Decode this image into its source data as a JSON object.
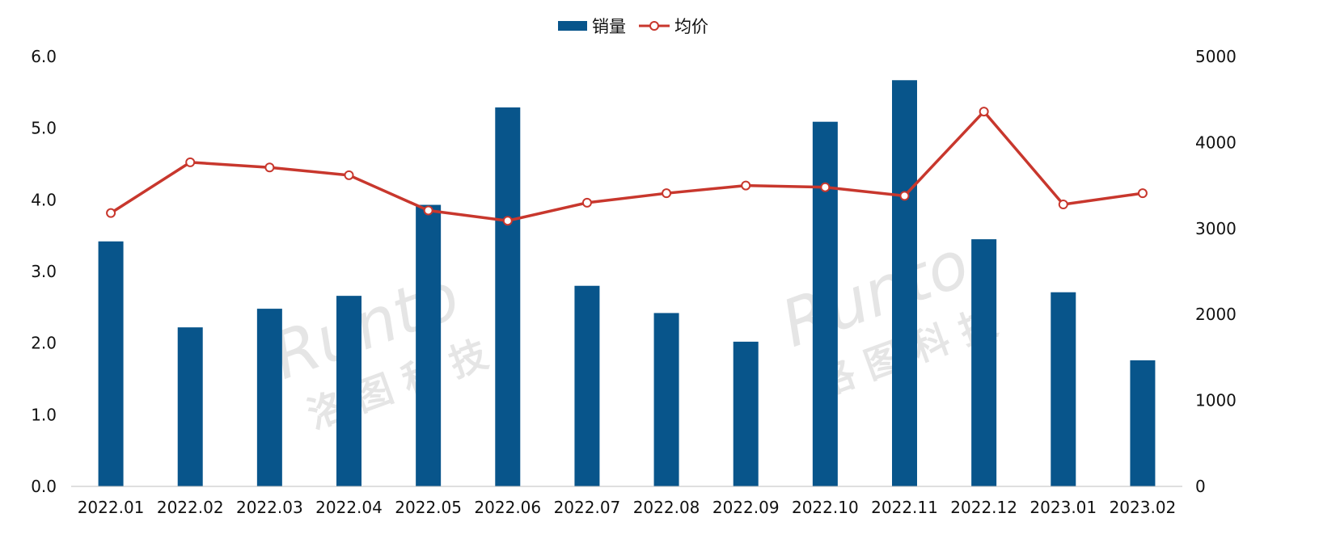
{
  "legend": {
    "bar_label": "销量",
    "line_label": "均价"
  },
  "watermark": {
    "brand": "Runto",
    "chinese": "洛 图 科 技"
  },
  "colors": {
    "bar": "#08558b",
    "line": "#c8372d",
    "marker_fill": "#ffffff",
    "axis": "#bfbfbf"
  },
  "chart_data": {
    "type": "bar",
    "categories": [
      "2022.01",
      "2022.02",
      "2022.03",
      "2022.04",
      "2022.05",
      "2022.06",
      "2022.07",
      "2022.08",
      "2022.09",
      "2022.10",
      "2022.11",
      "2022.12",
      "2023.01",
      "2023.02"
    ],
    "series": [
      {
        "name": "销量",
        "type": "bar",
        "axis": "left",
        "values": [
          3.42,
          2.22,
          2.48,
          2.66,
          3.93,
          5.29,
          2.8,
          2.42,
          2.02,
          5.09,
          5.67,
          3.45,
          2.71,
          1.76
        ]
      },
      {
        "name": "均价",
        "type": "line",
        "axis": "right",
        "values": [
          3180,
          3770,
          3710,
          3620,
          3210,
          3090,
          3300,
          3410,
          3500,
          3480,
          3380,
          4360,
          3280,
          3410
        ]
      }
    ],
    "y_left": {
      "min": 0,
      "max": 6,
      "ticks": [
        "0.0",
        "1.0",
        "2.0",
        "3.0",
        "4.0",
        "5.0",
        "6.0"
      ]
    },
    "y_right": {
      "min": 0,
      "max": 5000,
      "ticks": [
        "0",
        "1000",
        "2000",
        "3000",
        "4000",
        "5000"
      ]
    },
    "grid": false,
    "legend_position": "top-center"
  }
}
